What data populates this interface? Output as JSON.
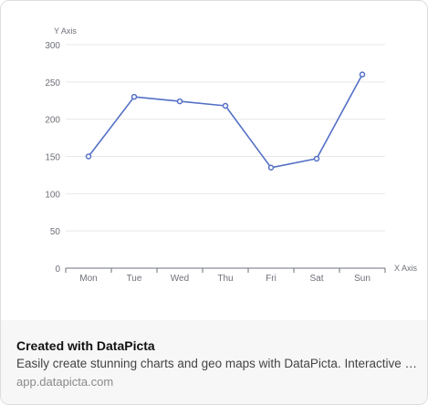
{
  "chart_data": {
    "type": "line",
    "title": "",
    "xlabel": "X Axis",
    "ylabel": "Y Axis",
    "categories": [
      "Mon",
      "Tue",
      "Wed",
      "Thu",
      "Fri",
      "Sat",
      "Sun"
    ],
    "series": [
      {
        "values": [
          150,
          230,
          224,
          218,
          135,
          147,
          260
        ]
      }
    ],
    "ylim": [
      0,
      300
    ],
    "yticks": [
      0,
      50,
      100,
      150,
      200,
      250,
      300
    ],
    "grid": true,
    "colors": {
      "line": "#5470c6",
      "grid": "#e8e8e8",
      "axis": "#6e7079",
      "label": "#6e7079"
    }
  },
  "footer": {
    "title": "Created with DataPicta",
    "description": "Easily create stunning charts and geo maps with DataPicta. Interactive charts and maps for any purpose.",
    "url": "app.datapicta.com"
  }
}
